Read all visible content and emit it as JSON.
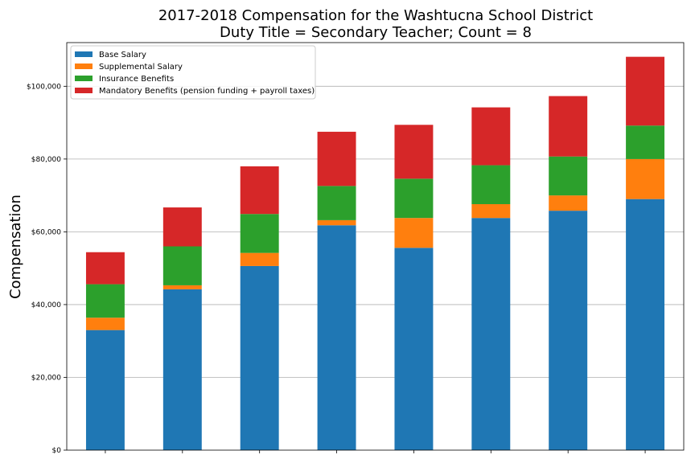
{
  "chart_data": {
    "type": "bar",
    "stacked": true,
    "title": "2017-2018 Compensation for the Washtucna School District",
    "subtitle": "Duty Title = Secondary Teacher; Count = 8",
    "xlabel": "",
    "ylabel": "Compensation",
    "ylim": [
      0,
      112000
    ],
    "yticks": [
      0,
      20000,
      40000,
      60000,
      80000,
      100000
    ],
    "ytick_labels": [
      "$0",
      "$20,000",
      "$40,000",
      "$60,000",
      "$80,000",
      "$100,000"
    ],
    "grid": "horizontal",
    "legend": "top-left",
    "categories": [
      "",
      "",
      "",
      "",
      "",
      "",
      "",
      ""
    ],
    "series": [
      {
        "name": "Base Salary",
        "color": "#1f77b4",
        "values": [
          33000,
          44200,
          50600,
          61800,
          55600,
          63800,
          65800,
          69000
        ]
      },
      {
        "name": "Supplemental Salary",
        "color": "#ff7f0e",
        "values": [
          3400,
          1100,
          3600,
          1400,
          8200,
          3800,
          4200,
          11000
        ]
      },
      {
        "name": "Insurance Benefits",
        "color": "#2ca02c",
        "values": [
          9200,
          10700,
          10700,
          9400,
          10800,
          10700,
          10700,
          9200
        ]
      },
      {
        "name": "Mandatory Benefits (pension funding + payroll taxes)",
        "color": "#d62728",
        "values": [
          8800,
          10700,
          13100,
          14900,
          14800,
          15900,
          16600,
          18900
        ]
      }
    ]
  }
}
